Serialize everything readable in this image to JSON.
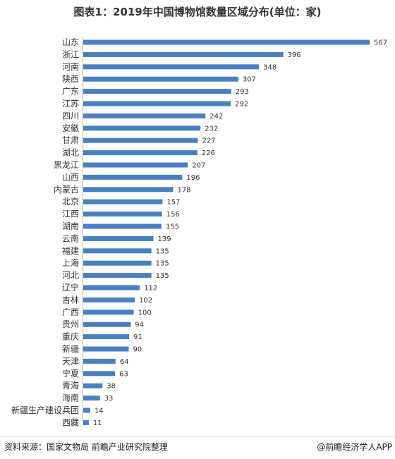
{
  "chart_data": {
    "type": "bar",
    "orientation": "horizontal",
    "title": "图表1：2019年中国博物馆数量区域分布(单位：家)",
    "categories": [
      "山东",
      "浙江",
      "河南",
      "陕西",
      "广东",
      "江苏",
      "四川",
      "安徽",
      "甘肃",
      "湖北",
      "黑龙江",
      "山西",
      "内蒙古",
      "北京",
      "江西",
      "湖南",
      "云南",
      "福建",
      "上海",
      "河北",
      "辽宁",
      "吉林",
      "广西",
      "贵州",
      "重庆",
      "新疆",
      "天津",
      "宁夏",
      "青海",
      "海南",
      "新疆生产建设兵团",
      "西藏"
    ],
    "values": [
      567,
      396,
      348,
      307,
      293,
      292,
      242,
      232,
      227,
      226,
      207,
      196,
      178,
      157,
      156,
      155,
      139,
      135,
      135,
      135,
      112,
      102,
      100,
      94,
      91,
      90,
      64,
      63,
      38,
      33,
      14,
      11
    ],
    "bar_color": "#4a7fc1",
    "grid": false,
    "data_labels": true
  },
  "footer": {
    "source": "资料来源：国家文物局 前瞻产业研究院整理",
    "app": "@前瞻经济学人APP"
  }
}
